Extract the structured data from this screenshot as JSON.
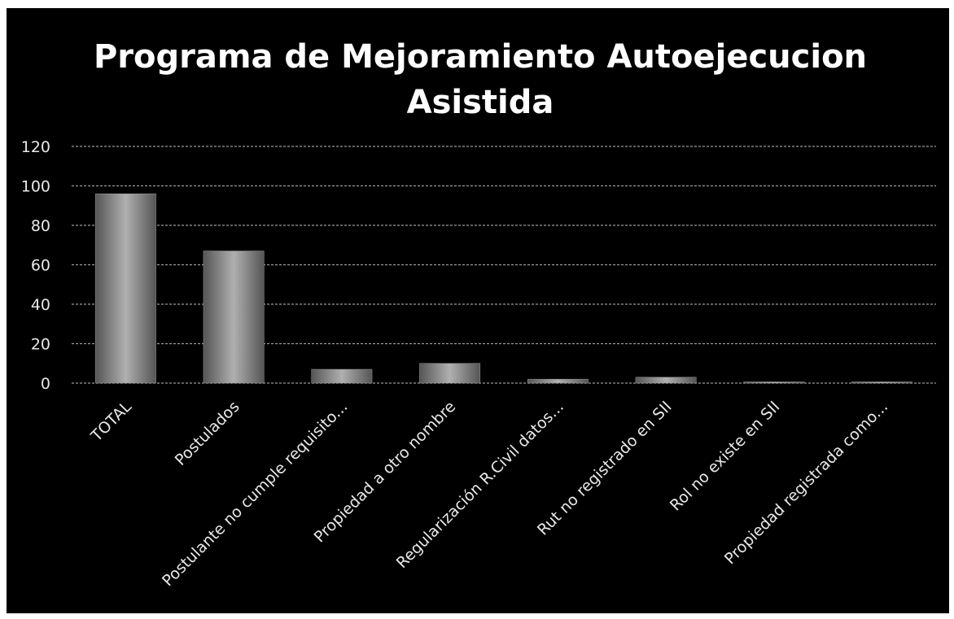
{
  "chart_data": {
    "type": "bar",
    "title": "Programa de Mejoramiento Autoejecucion Asistida",
    "categories": [
      "TOTAL",
      "Postulados",
      "Postulante no cumple requisito...",
      "Propiedad a otro nombre",
      "Regularización R.Civil datos...",
      "Rut no registrado en SII",
      "Rol no existe en SII",
      "Propiedad registrada como..."
    ],
    "values": [
      96,
      67,
      7,
      10,
      2,
      3,
      0,
      0
    ],
    "color": "#9a9a9a",
    "ylim": [
      0,
      120
    ],
    "yticks": [
      0,
      20,
      40,
      60,
      80,
      100,
      120
    ],
    "grid": true
  }
}
